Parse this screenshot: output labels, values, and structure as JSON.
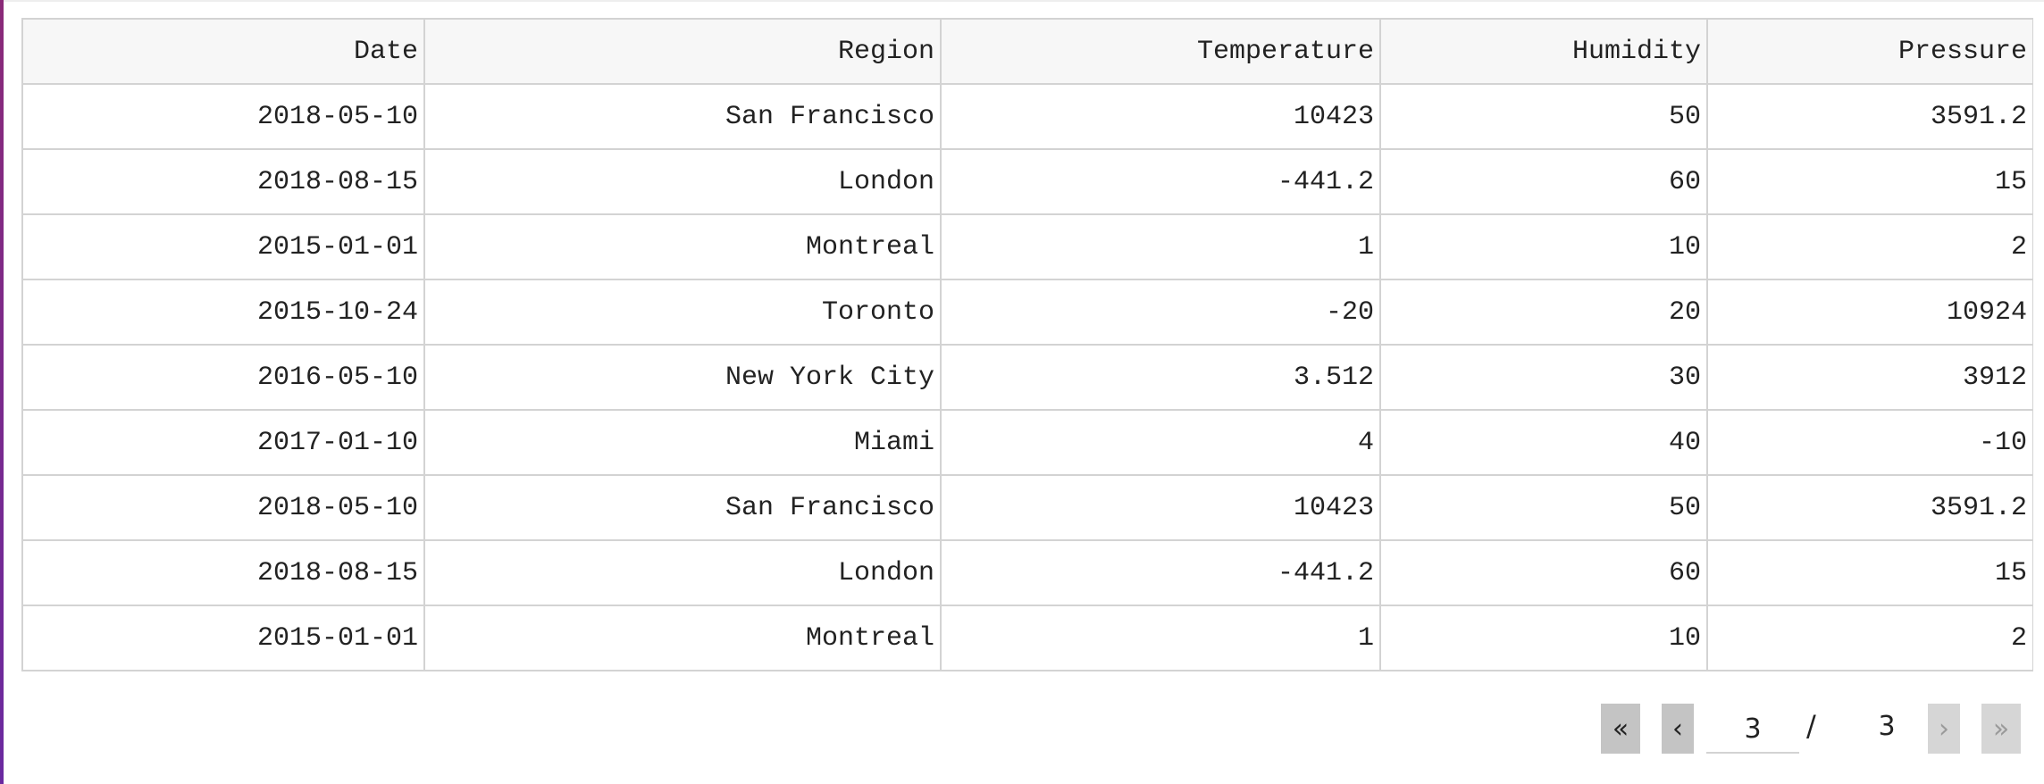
{
  "table": {
    "columns": [
      "Date",
      "Region",
      "Temperature",
      "Humidity",
      "Pressure"
    ],
    "rows": [
      [
        "2018-05-10",
        "San Francisco",
        "10423",
        "50",
        "3591.2"
      ],
      [
        "2018-08-15",
        "London",
        "-441.2",
        "60",
        "15"
      ],
      [
        "2015-01-01",
        "Montreal",
        "1",
        "10",
        "2"
      ],
      [
        "2015-10-24",
        "Toronto",
        "-20",
        "20",
        "10924"
      ],
      [
        "2016-05-10",
        "New York City",
        "3.512",
        "30",
        "3912"
      ],
      [
        "2017-01-10",
        "Miami",
        "4",
        "40",
        "-10"
      ],
      [
        "2018-05-10",
        "San Francisco",
        "10423",
        "50",
        "3591.2"
      ],
      [
        "2018-08-15",
        "London",
        "-441.2",
        "60",
        "15"
      ],
      [
        "2015-01-01",
        "Montreal",
        "1",
        "10",
        "2"
      ]
    ]
  },
  "pagination": {
    "first_label": "«",
    "prev_label": "‹",
    "current_page": "3",
    "separator": "/",
    "total_pages": "3",
    "next_label": "›",
    "last_label": "»"
  },
  "colors": {
    "accent": "#7a2a8c",
    "border": "#d3d3d3",
    "header_bg": "#f7f7f7",
    "button_bg": "#c4c4c4"
  }
}
